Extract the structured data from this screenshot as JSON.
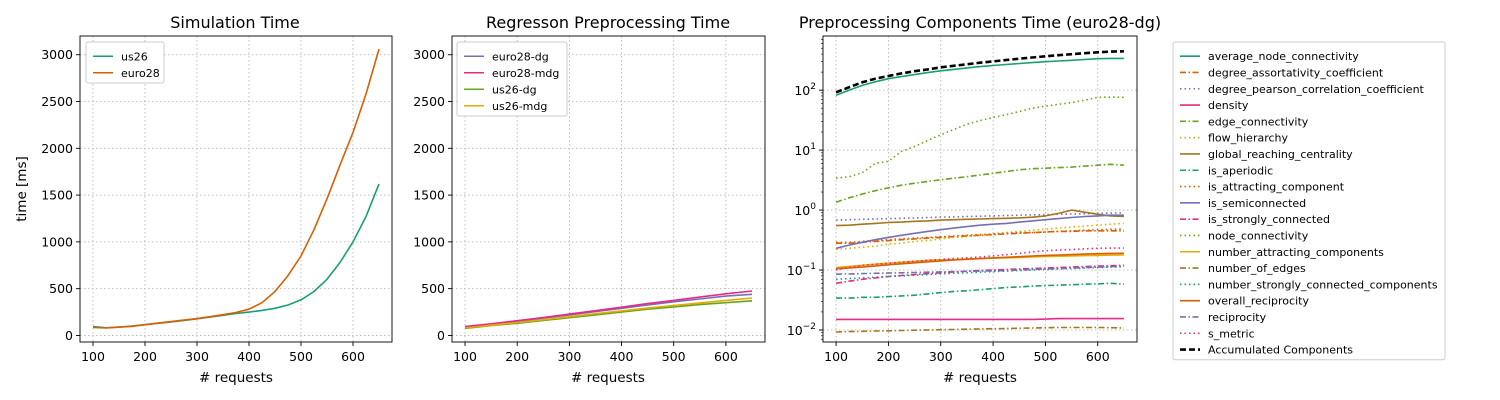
{
  "chart_data": [
    {
      "type": "line",
      "title": "Simulation Time",
      "xlabel": "# requests",
      "ylabel": "time [ms]",
      "xlim": [
        75,
        675
      ],
      "ylim": [
        -70,
        3200
      ],
      "xticks": [
        "100",
        "200",
        "300",
        "400",
        "500",
        "600"
      ],
      "yticks": [
        "0",
        "500",
        "1000",
        "1500",
        "2000",
        "2500",
        "3000"
      ],
      "grid": true,
      "legend_position": "top-left",
      "x": [
        100,
        125,
        150,
        175,
        200,
        225,
        250,
        275,
        300,
        325,
        350,
        375,
        400,
        425,
        450,
        475,
        500,
        525,
        550,
        575,
        600,
        625,
        650
      ],
      "series": [
        {
          "name": "us26",
          "color": "#1b9e77",
          "values": [
            95,
            82,
            90,
            100,
            115,
            130,
            145,
            160,
            178,
            196,
            215,
            235,
            250,
            268,
            290,
            325,
            380,
            470,
            600,
            780,
            1000,
            1270,
            1620
          ]
        },
        {
          "name": "euro28",
          "color": "#d95f02",
          "values": [
            85,
            80,
            88,
            98,
            115,
            132,
            148,
            164,
            180,
            200,
            222,
            245,
            280,
            350,
            470,
            640,
            850,
            1130,
            1460,
            1820,
            2170,
            2580,
            3060
          ]
        }
      ]
    },
    {
      "type": "line",
      "title": "Regresson Preprocessing Time",
      "xlabel": "# requests",
      "ylabel": "",
      "xlim": [
        75,
        675
      ],
      "ylim": [
        -70,
        3200
      ],
      "xticks": [
        "100",
        "200",
        "300",
        "400",
        "500",
        "600"
      ],
      "yticks": [
        "0",
        "500",
        "1000",
        "1500",
        "2000",
        "2500",
        "3000"
      ],
      "grid": true,
      "legend_position": "top-left",
      "x": [
        100,
        150,
        200,
        250,
        300,
        350,
        400,
        450,
        500,
        550,
        600,
        650
      ],
      "series": [
        {
          "name": "euro28-dg",
          "color": "#7570b3",
          "values": [
            90,
            120,
            150,
            185,
            220,
            255,
            290,
            325,
            360,
            390,
            420,
            440
          ]
        },
        {
          "name": "euro28-mdg",
          "color": "#e7298a",
          "values": [
            95,
            125,
            158,
            192,
            228,
            265,
            302,
            340,
            375,
            410,
            445,
            475
          ]
        },
        {
          "name": "us26-dg",
          "color": "#66a61e",
          "values": [
            75,
            105,
            130,
            160,
            190,
            220,
            250,
            280,
            305,
            330,
            350,
            370
          ]
        },
        {
          "name": "us26-mdg",
          "color": "#e6ab02",
          "values": [
            80,
            110,
            138,
            168,
            200,
            232,
            262,
            292,
            320,
            348,
            375,
            400
          ]
        }
      ]
    },
    {
      "type": "line",
      "title": "Preprocessing Components Time (euro28-dg)",
      "xlabel": "# requests",
      "ylabel": "",
      "yscale": "log",
      "xlim": [
        75,
        675
      ],
      "ylim": [
        0.0063,
        800
      ],
      "xticks": [
        "100",
        "200",
        "300",
        "400",
        "500",
        "600"
      ],
      "yticks": [
        {
          "base": "10",
          "exp": "−2",
          "v": 0.01
        },
        {
          "base": "10",
          "exp": "−1",
          "v": 0.1
        },
        {
          "base": "10",
          "exp": "0",
          "v": 1
        },
        {
          "base": "10",
          "exp": "1",
          "v": 10
        },
        {
          "base": "10",
          "exp": "2",
          "v": 100
        }
      ],
      "grid": true,
      "legend_position": "outside right",
      "x": [
        100,
        125,
        150,
        175,
        200,
        225,
        250,
        275,
        300,
        325,
        350,
        375,
        400,
        425,
        450,
        475,
        500,
        525,
        550,
        575,
        600,
        625,
        650
      ],
      "series": [
        {
          "name": "average_node_connectivity",
          "color": "#1b9e77",
          "dash": "solid",
          "values": [
            82,
            100,
            120,
            138,
            155,
            168,
            182,
            196,
            210,
            222,
            235,
            247,
            258,
            268,
            278,
            288,
            298,
            306,
            315,
            325,
            335,
            338,
            338
          ]
        },
        {
          "name": "degree_assortativity_coefficient",
          "color": "#d95f02",
          "dash": "dashdot",
          "values": [
            0.28,
            0.28,
            0.29,
            0.3,
            0.31,
            0.32,
            0.33,
            0.34,
            0.35,
            0.36,
            0.37,
            0.38,
            0.39,
            0.4,
            0.41,
            0.42,
            0.43,
            0.44,
            0.44,
            0.45,
            0.45,
            0.45,
            0.45
          ]
        },
        {
          "name": "degree_pearson_correlation_coefficient",
          "color": "#7570b3",
          "dash": "dotted",
          "values": [
            0.68,
            0.69,
            0.7,
            0.71,
            0.72,
            0.73,
            0.74,
            0.75,
            0.76,
            0.77,
            0.78,
            0.79,
            0.8,
            0.81,
            0.82,
            0.83,
            0.84,
            0.85,
            0.86,
            0.87,
            0.88,
            0.89,
            0.9
          ]
        },
        {
          "name": "density",
          "color": "#e7298a",
          "dash": "solid",
          "values": [
            0.015,
            0.015,
            0.015,
            0.015,
            0.015,
            0.015,
            0.015,
            0.015,
            0.015,
            0.015,
            0.015,
            0.015,
            0.015,
            0.015,
            0.015,
            0.015,
            0.0152,
            0.0155,
            0.0155,
            0.0155,
            0.0155,
            0.0155,
            0.0155
          ]
        },
        {
          "name": "edge_connectivity",
          "color": "#66a61e",
          "dash": "dashdot",
          "values": [
            1.35,
            1.6,
            1.85,
            2.1,
            2.35,
            2.6,
            2.8,
            3.0,
            3.2,
            3.4,
            3.6,
            3.85,
            4.1,
            4.4,
            4.7,
            4.9,
            5.0,
            5.1,
            5.2,
            5.4,
            5.6,
            5.8,
            5.6
          ]
        },
        {
          "name": "flow_hierarchy",
          "color": "#e6ab02",
          "dash": "dotted",
          "values": [
            0.22,
            0.23,
            0.24,
            0.25,
            0.27,
            0.28,
            0.3,
            0.31,
            0.33,
            0.35,
            0.36,
            0.38,
            0.4,
            0.42,
            0.44,
            0.46,
            0.48,
            0.5,
            0.52,
            0.54,
            0.56,
            0.58,
            0.6
          ]
        },
        {
          "name": "global_reaching_centrality",
          "color": "#a6761d",
          "dash": "solid",
          "values": [
            0.55,
            0.56,
            0.58,
            0.6,
            0.62,
            0.63,
            0.65,
            0.66,
            0.68,
            0.69,
            0.7,
            0.71,
            0.72,
            0.73,
            0.74,
            0.76,
            0.8,
            0.88,
            1.0,
            0.92,
            0.85,
            0.8,
            0.78
          ]
        },
        {
          "name": "is_aperiodic",
          "color": "#1b9e77",
          "dash": "dashdot",
          "values": [
            0.034,
            0.034,
            0.035,
            0.035,
            0.036,
            0.037,
            0.038,
            0.04,
            0.042,
            0.044,
            0.045,
            0.047,
            0.049,
            0.051,
            0.052,
            0.054,
            0.055,
            0.056,
            0.057,
            0.058,
            0.059,
            0.06,
            0.058
          ]
        },
        {
          "name": "is_attracting_component",
          "color": "#d95f02",
          "dash": "dotted",
          "values": [
            0.29,
            0.29,
            0.3,
            0.31,
            0.32,
            0.33,
            0.34,
            0.35,
            0.36,
            0.37,
            0.38,
            0.39,
            0.4,
            0.41,
            0.42,
            0.42,
            0.43,
            0.44,
            0.45,
            0.46,
            0.47,
            0.48,
            0.48
          ]
        },
        {
          "name": "is_semiconnected",
          "color": "#7570b3",
          "dash": "solid",
          "values": [
            0.23,
            0.26,
            0.29,
            0.32,
            0.35,
            0.38,
            0.41,
            0.44,
            0.47,
            0.5,
            0.53,
            0.56,
            0.58,
            0.6,
            0.63,
            0.66,
            0.69,
            0.72,
            0.75,
            0.78,
            0.8,
            0.82,
            0.82
          ]
        },
        {
          "name": "is_strongly_connected",
          "color": "#e7298a",
          "dash": "dashdot",
          "values": [
            0.06,
            0.065,
            0.07,
            0.074,
            0.078,
            0.081,
            0.084,
            0.087,
            0.09,
            0.093,
            0.096,
            0.098,
            0.1,
            0.102,
            0.104,
            0.106,
            0.108,
            0.11,
            0.112,
            0.114,
            0.116,
            0.118,
            0.12
          ]
        },
        {
          "name": "node_connectivity",
          "color": "#66a61e",
          "dash": "dotted",
          "values": [
            3.4,
            3.6,
            4.2,
            6.0,
            6.5,
            9.5,
            11.5,
            14.5,
            18.0,
            22.0,
            27.0,
            31.0,
            35.0,
            39.0,
            44.0,
            50.0,
            54.0,
            58.0,
            62.0,
            68.0,
            76.0,
            77.0,
            76.0
          ]
        },
        {
          "name": "number_attracting_components",
          "color": "#e6ab02",
          "dash": "solid",
          "values": [
            0.11,
            0.115,
            0.12,
            0.125,
            0.13,
            0.135,
            0.14,
            0.145,
            0.148,
            0.15,
            0.152,
            0.155,
            0.158,
            0.16,
            0.162,
            0.165,
            0.168,
            0.17,
            0.172,
            0.174,
            0.175,
            0.177,
            0.178
          ]
        },
        {
          "name": "number_of_edges",
          "color": "#a6761d",
          "dash": "dashdot",
          "values": [
            0.0093,
            0.0094,
            0.0095,
            0.0096,
            0.0097,
            0.0098,
            0.0099,
            0.01,
            0.0101,
            0.0102,
            0.0103,
            0.0104,
            0.0105,
            0.0106,
            0.0107,
            0.0108,
            0.0109,
            0.011,
            0.011,
            0.011,
            0.011,
            0.0109,
            0.0108
          ]
        },
        {
          "name": "number_strongly_connected_components",
          "color": "#1b9e77",
          "dash": "dotted",
          "values": [
            0.07,
            0.072,
            0.074,
            0.076,
            0.078,
            0.08,
            0.082,
            0.084,
            0.086,
            0.088,
            0.09,
            0.092,
            0.094,
            0.096,
            0.098,
            0.1,
            0.102,
            0.104,
            0.106,
            0.108,
            0.11,
            0.112,
            0.113
          ]
        },
        {
          "name": "overall_reciprocity",
          "color": "#d95f02",
          "dash": "solid",
          "values": [
            0.105,
            0.108,
            0.112,
            0.117,
            0.122,
            0.127,
            0.132,
            0.137,
            0.142,
            0.147,
            0.151,
            0.155,
            0.159,
            0.163,
            0.167,
            0.171,
            0.175,
            0.178,
            0.181,
            0.184,
            0.187,
            0.189,
            0.19
          ]
        },
        {
          "name": "reciprocity",
          "color": "#7570b3",
          "dash": "dashdot",
          "values": [
            0.085,
            0.086,
            0.087,
            0.088,
            0.089,
            0.09,
            0.091,
            0.092,
            0.093,
            0.094,
            0.095,
            0.096,
            0.097,
            0.098,
            0.1,
            0.102,
            0.104,
            0.106,
            0.108,
            0.11,
            0.112,
            0.114,
            0.115
          ]
        },
        {
          "name": "s_metric",
          "color": "#e7298a",
          "dash": "dotted",
          "values": [
            0.1,
            0.11,
            0.12,
            0.125,
            0.13,
            0.135,
            0.14,
            0.145,
            0.15,
            0.155,
            0.16,
            0.165,
            0.172,
            0.18,
            0.19,
            0.2,
            0.21,
            0.215,
            0.22,
            0.225,
            0.23,
            0.232,
            0.232
          ]
        },
        {
          "name": "Accumulated Components",
          "color": "#000000",
          "dash": "dashed",
          "values": [
            92,
            112,
            135,
            155,
            172,
            190,
            207,
            222,
            240,
            255,
            270,
            287,
            302,
            318,
            334,
            350,
            367,
            382,
            398,
            414,
            428,
            440,
            445
          ]
        }
      ]
    }
  ]
}
